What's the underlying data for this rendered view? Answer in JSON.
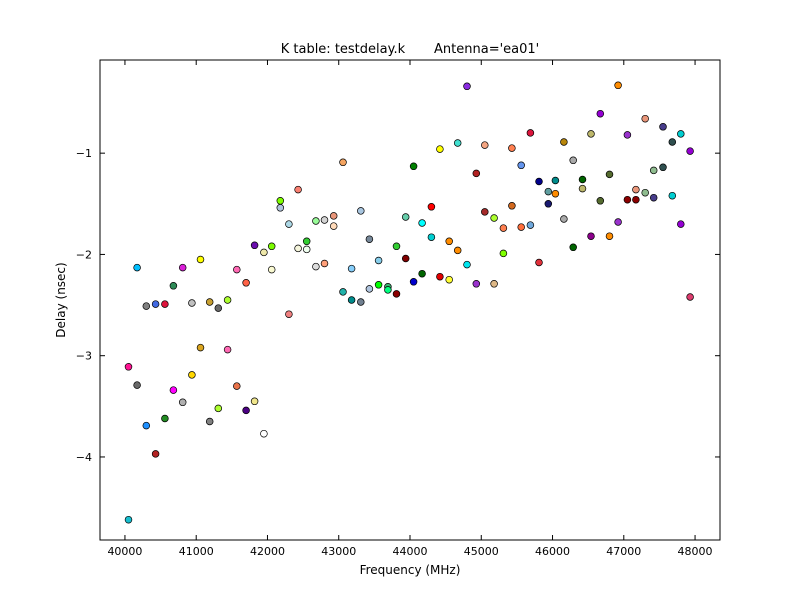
{
  "chart_data": {
    "type": "scatter",
    "title": "K table: testdelay.k       Antenna='ea01'",
    "xlabel": "Frequency (MHz)",
    "ylabel": "Delay (nsec)",
    "xlim": [
      39650,
      48350
    ],
    "ylim": [
      -4.82,
      -0.08
    ],
    "x_ticks": [
      40000,
      41000,
      42000,
      43000,
      44000,
      45000,
      46000,
      47000,
      48000
    ],
    "x_tick_labels": [
      "40000",
      "41000",
      "42000",
      "43000",
      "44000",
      "45000",
      "46000",
      "47000",
      "48000"
    ],
    "y_ticks": [
      -4,
      -3,
      -2,
      -1
    ],
    "y_tick_labels": [
      "−4",
      "−3",
      "−2",
      "−1"
    ],
    "grid": false,
    "points": [
      {
        "x": 40050,
        "y": -4.62,
        "color": "#17becf"
      },
      {
        "x": 40050,
        "y": -3.11,
        "color": "#ff1493"
      },
      {
        "x": 40170,
        "y": -2.13,
        "color": "#00bfff"
      },
      {
        "x": 40170,
        "y": -3.29,
        "color": "#696969"
      },
      {
        "x": 40300,
        "y": -3.69,
        "color": "#1e90ff"
      },
      {
        "x": 40300,
        "y": -2.51,
        "color": "#808080"
      },
      {
        "x": 40430,
        "y": -2.49,
        "color": "#4169e1"
      },
      {
        "x": 40430,
        "y": -3.97,
        "color": "#b22222"
      },
      {
        "x": 40560,
        "y": -2.49,
        "color": "#dc143c"
      },
      {
        "x": 40560,
        "y": -3.62,
        "color": "#228b22"
      },
      {
        "x": 40680,
        "y": -2.31,
        "color": "#2e8b57"
      },
      {
        "x": 40680,
        "y": -3.34,
        "color": "#ff00ff"
      },
      {
        "x": 40810,
        "y": -2.13,
        "color": "#da1fd8"
      },
      {
        "x": 40810,
        "y": -3.46,
        "color": "#b0b0b0"
      },
      {
        "x": 40940,
        "y": -2.48,
        "color": "#c0c0c0"
      },
      {
        "x": 40940,
        "y": -3.19,
        "color": "#ffd700"
      },
      {
        "x": 41060,
        "y": -2.05,
        "color": "#ffff00"
      },
      {
        "x": 41060,
        "y": -2.92,
        "color": "#daa520"
      },
      {
        "x": 41190,
        "y": -2.47,
        "color": "#c8a030"
      },
      {
        "x": 41190,
        "y": -3.65,
        "color": "#808080"
      },
      {
        "x": 41310,
        "y": -2.53,
        "color": "#696969"
      },
      {
        "x": 41310,
        "y": -3.52,
        "color": "#adff2f"
      },
      {
        "x": 41440,
        "y": -2.45,
        "color": "#adff2f"
      },
      {
        "x": 41440,
        "y": -2.94,
        "color": "#ff69b4"
      },
      {
        "x": 41570,
        "y": -2.15,
        "color": "#ff69b4"
      },
      {
        "x": 41570,
        "y": -3.3,
        "color": "#e9734a"
      },
      {
        "x": 41700,
        "y": -2.28,
        "color": "#ff6347"
      },
      {
        "x": 41700,
        "y": -3.54,
        "color": "#4b0082"
      },
      {
        "x": 41820,
        "y": -1.91,
        "color": "#6a0dad"
      },
      {
        "x": 41820,
        "y": -3.45,
        "color": "#f0e68c"
      },
      {
        "x": 41950,
        "y": -1.98,
        "color": "#eee8aa"
      },
      {
        "x": 41950,
        "y": -3.77,
        "color": "#ffffff"
      },
      {
        "x": 42060,
        "y": -2.15,
        "color": "#fafad2"
      },
      {
        "x": 42060,
        "y": -1.92,
        "color": "#7cfc00"
      },
      {
        "x": 42180,
        "y": -1.47,
        "color": "#7fff00"
      },
      {
        "x": 42180,
        "y": -1.54,
        "color": "#b0c4de"
      },
      {
        "x": 42300,
        "y": -1.7,
        "color": "#add8e6"
      },
      {
        "x": 42300,
        "y": -2.59,
        "color": "#f08080"
      },
      {
        "x": 42430,
        "y": -1.36,
        "color": "#fa8072"
      },
      {
        "x": 42430,
        "y": -1.94,
        "color": "#f5f5dc"
      },
      {
        "x": 42550,
        "y": -1.87,
        "color": "#32cd32"
      },
      {
        "x": 42550,
        "y": -1.95,
        "color": "#f0fff0"
      },
      {
        "x": 42680,
        "y": -1.67,
        "color": "#98fb98"
      },
      {
        "x": 42680,
        "y": -2.12,
        "color": "#dcdcdc"
      },
      {
        "x": 42800,
        "y": -1.66,
        "color": "#d3d3d3"
      },
      {
        "x": 42800,
        "y": -2.09,
        "color": "#ffa07a"
      },
      {
        "x": 42930,
        "y": -1.62,
        "color": "#e9967a"
      },
      {
        "x": 42930,
        "y": -1.72,
        "color": "#ffdab9"
      },
      {
        "x": 43060,
        "y": -1.09,
        "color": "#f4a460"
      },
      {
        "x": 43060,
        "y": -2.37,
        "color": "#20b2aa"
      },
      {
        "x": 43180,
        "y": -2.14,
        "color": "#87cefa"
      },
      {
        "x": 43180,
        "y": -2.45,
        "color": "#008b8b"
      },
      {
        "x": 43310,
        "y": -1.57,
        "color": "#a9c6e0"
      },
      {
        "x": 43310,
        "y": -2.47,
        "color": "#708090"
      },
      {
        "x": 43430,
        "y": -1.85,
        "color": "#778899"
      },
      {
        "x": 43430,
        "y": -2.34,
        "color": "#b0c4de"
      },
      {
        "x": 43560,
        "y": -2.06,
        "color": "#87ceeb"
      },
      {
        "x": 43560,
        "y": -2.3,
        "color": "#00ff00"
      },
      {
        "x": 43690,
        "y": -2.32,
        "color": "#3cb371"
      },
      {
        "x": 43690,
        "y": -2.35,
        "color": "#00ff7f"
      },
      {
        "x": 43810,
        "y": -1.92,
        "color": "#32cd32"
      },
      {
        "x": 43810,
        "y": -2.39,
        "color": "#8b0000"
      },
      {
        "x": 43940,
        "y": -1.63,
        "color": "#66cdaa"
      },
      {
        "x": 43940,
        "y": -2.04,
        "color": "#800000"
      },
      {
        "x": 44050,
        "y": -1.13,
        "color": "#008000"
      },
      {
        "x": 44050,
        "y": -2.27,
        "color": "#0000cd"
      },
      {
        "x": 44170,
        "y": -1.69,
        "color": "#00ffff"
      },
      {
        "x": 44170,
        "y": -2.19,
        "color": "#006400"
      },
      {
        "x": 44300,
        "y": -1.53,
        "color": "#ff0000"
      },
      {
        "x": 44300,
        "y": -1.83,
        "color": "#00ced1"
      },
      {
        "x": 44420,
        "y": -0.96,
        "color": "#ffff00"
      },
      {
        "x": 44420,
        "y": -2.22,
        "color": "#e00000"
      },
      {
        "x": 44550,
        "y": -1.87,
        "color": "#ff8c00"
      },
      {
        "x": 44550,
        "y": -2.25,
        "color": "#ffff33"
      },
      {
        "x": 44670,
        "y": -0.9,
        "color": "#40e0d0"
      },
      {
        "x": 44670,
        "y": -1.96,
        "color": "#ff8c00"
      },
      {
        "x": 44800,
        "y": -0.34,
        "color": "#8a2be2"
      },
      {
        "x": 44800,
        "y": -2.1,
        "color": "#00e5ee"
      },
      {
        "x": 44930,
        "y": -1.2,
        "color": "#b22222"
      },
      {
        "x": 44930,
        "y": -2.29,
        "color": "#9932cc"
      },
      {
        "x": 45050,
        "y": -0.92,
        "color": "#f4a582"
      },
      {
        "x": 45050,
        "y": -1.58,
        "color": "#a52a2a"
      },
      {
        "x": 45180,
        "y": -1.64,
        "color": "#adff2f"
      },
      {
        "x": 45180,
        "y": -2.29,
        "color": "#deb887"
      },
      {
        "x": 45310,
        "y": -1.74,
        "color": "#ff7f50"
      },
      {
        "x": 45310,
        "y": -1.99,
        "color": "#7fff00"
      },
      {
        "x": 45430,
        "y": -0.95,
        "color": "#ff7f50"
      },
      {
        "x": 45430,
        "y": -1.52,
        "color": "#d2691e"
      },
      {
        "x": 45560,
        "y": -1.12,
        "color": "#6495ed"
      },
      {
        "x": 45560,
        "y": -1.73,
        "color": "#ff6f3c"
      },
      {
        "x": 45690,
        "y": -0.8,
        "color": "#dc143c"
      },
      {
        "x": 45690,
        "y": -1.71,
        "color": "#6fa8dc"
      },
      {
        "x": 45810,
        "y": -1.28,
        "color": "#00008b"
      },
      {
        "x": 45810,
        "y": -2.08,
        "color": "#e0303a"
      },
      {
        "x": 45940,
        "y": -1.38,
        "color": "#5f9ea0"
      },
      {
        "x": 45940,
        "y": -1.5,
        "color": "#191970"
      },
      {
        "x": 46040,
        "y": -1.27,
        "color": "#008b8b"
      },
      {
        "x": 46040,
        "y": -1.4,
        "color": "#ff8c00"
      },
      {
        "x": 46160,
        "y": -0.89,
        "color": "#b8860b"
      },
      {
        "x": 46160,
        "y": -1.65,
        "color": "#a9a9a9"
      },
      {
        "x": 46290,
        "y": -1.07,
        "color": "#a9a9a9"
      },
      {
        "x": 46290,
        "y": -1.93,
        "color": "#006400"
      },
      {
        "x": 46420,
        "y": -1.26,
        "color": "#006400"
      },
      {
        "x": 46420,
        "y": -1.35,
        "color": "#bdb76b"
      },
      {
        "x": 46540,
        "y": -0.81,
        "color": "#bdb76b"
      },
      {
        "x": 46540,
        "y": -1.82,
        "color": "#8b008b"
      },
      {
        "x": 46670,
        "y": -0.61,
        "color": "#9400d3"
      },
      {
        "x": 46670,
        "y": -1.47,
        "color": "#556b2f"
      },
      {
        "x": 46800,
        "y": -1.21,
        "color": "#556b2f"
      },
      {
        "x": 46800,
        "y": -1.82,
        "color": "#ff8c00"
      },
      {
        "x": 46920,
        "y": -0.33,
        "color": "#ff8c00"
      },
      {
        "x": 46920,
        "y": -1.68,
        "color": "#9932cc"
      },
      {
        "x": 47050,
        "y": -0.82,
        "color": "#9932cc"
      },
      {
        "x": 47050,
        "y": -1.46,
        "color": "#8b0000"
      },
      {
        "x": 47170,
        "y": -1.36,
        "color": "#e9967a"
      },
      {
        "x": 47170,
        "y": -1.46,
        "color": "#8b0000"
      },
      {
        "x": 47300,
        "y": -0.66,
        "color": "#e9967a"
      },
      {
        "x": 47300,
        "y": -1.39,
        "color": "#8fbc8f"
      },
      {
        "x": 47420,
        "y": -1.17,
        "color": "#8fbc8f"
      },
      {
        "x": 47420,
        "y": -1.44,
        "color": "#483d8b"
      },
      {
        "x": 47550,
        "y": -0.74,
        "color": "#483d8b"
      },
      {
        "x": 47550,
        "y": -1.14,
        "color": "#2f4f4f"
      },
      {
        "x": 47680,
        "y": -0.89,
        "color": "#2f4f4f"
      },
      {
        "x": 47680,
        "y": -1.42,
        "color": "#00ced1"
      },
      {
        "x": 47800,
        "y": -0.81,
        "color": "#00ced1"
      },
      {
        "x": 47800,
        "y": -1.7,
        "color": "#9400d3"
      },
      {
        "x": 47930,
        "y": -0.98,
        "color": "#9400d3"
      },
      {
        "x": 47930,
        "y": -2.42,
        "color": "#dc3c6e"
      }
    ]
  }
}
